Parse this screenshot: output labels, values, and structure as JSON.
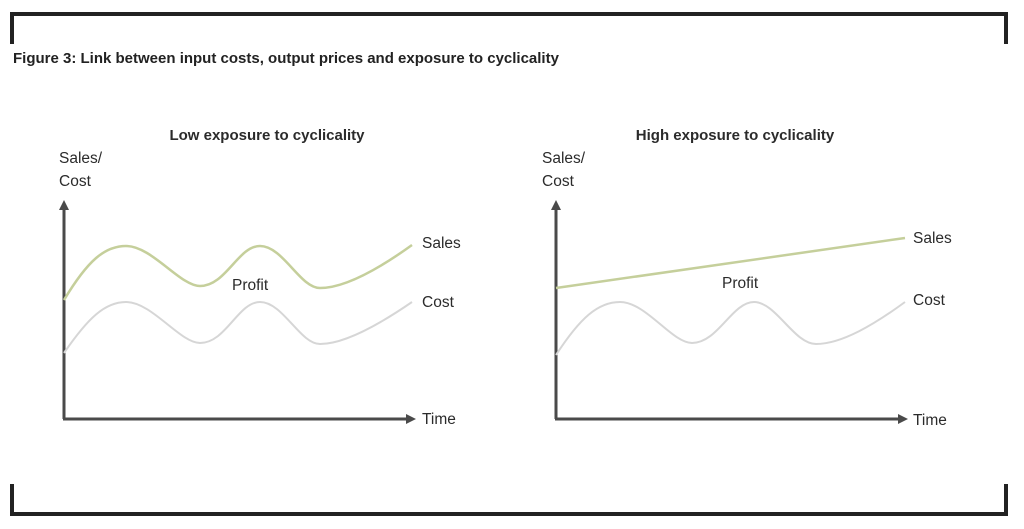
{
  "figure_title": "Figure 3: Link between input costs, output prices and exposure to cyclicality",
  "colors": {
    "sales": "#c5cf9b",
    "cost": "#d6d6d6",
    "axis": "#4a4a4a",
    "frame": "#222222"
  },
  "panels": [
    {
      "title": "Low exposure to cyclicality",
      "y_axis_line1": "Sales/",
      "y_axis_line2": "Cost",
      "x_axis": "Time",
      "sales_label": "Sales",
      "profit_label": "Profit",
      "cost_label": "Cost"
    },
    {
      "title": "High exposure to cyclicality",
      "y_axis_line1": "Sales/",
      "y_axis_line2": "Cost",
      "x_axis": "Time",
      "sales_label": "Sales",
      "profit_label": "Profit",
      "cost_label": "Cost"
    }
  ]
}
